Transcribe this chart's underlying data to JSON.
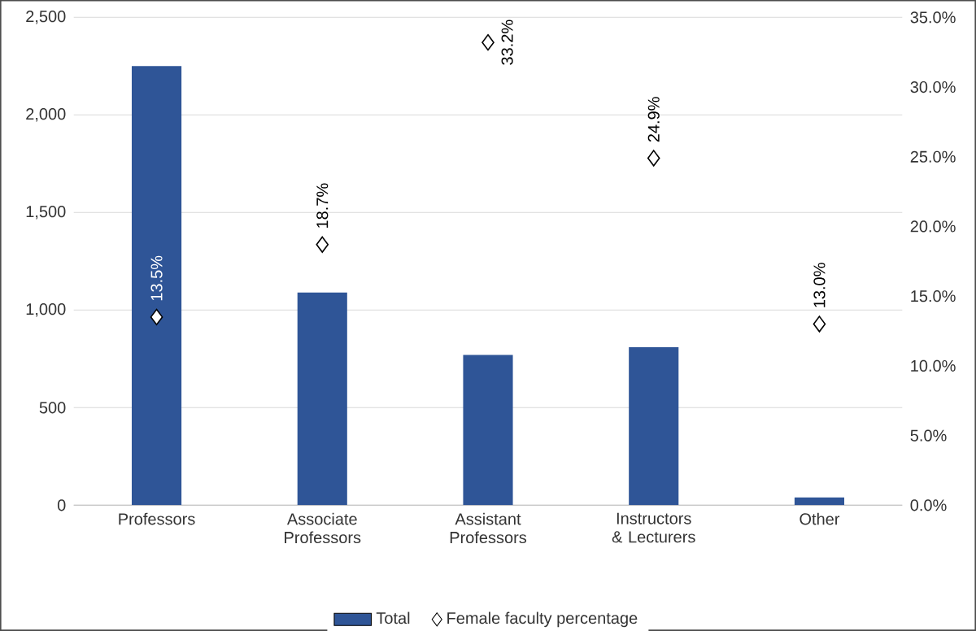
{
  "chart_data": {
    "type": "bar",
    "categories": [
      "Professors",
      "Associate Professors",
      "Assistant Professors",
      "Instructors & Lecturers",
      "Other"
    ],
    "series": [
      {
        "name": "Total",
        "color": "#2f5597",
        "values": [
          2250,
          1090,
          770,
          810,
          40
        ]
      },
      {
        "name": "Female faculty percentage",
        "type": "scatter",
        "axis": "y2",
        "color": "#000000",
        "marker": "diamond",
        "values": [
          13.5,
          18.7,
          33.2,
          24.9,
          13.0
        ],
        "value_labels": [
          "13.5%",
          "18.7%",
          "33.2%",
          "24.9%",
          "13.0%"
        ]
      }
    ],
    "ylim": [
      0,
      2500
    ],
    "yticks": [
      {
        "value": 0,
        "label": "0"
      },
      {
        "value": 500,
        "label": "500"
      },
      {
        "value": 1000,
        "label": "1,000"
      },
      {
        "value": 1500,
        "label": "1,500"
      },
      {
        "value": 2000,
        "label": "2,000"
      },
      {
        "value": 2500,
        "label": "2,500"
      }
    ],
    "y2lim": [
      0,
      35
    ],
    "y2ticks": [
      {
        "value": 0,
        "label": "0.0%"
      },
      {
        "value": 5,
        "label": "5.0%"
      },
      {
        "value": 10,
        "label": "10.0%"
      },
      {
        "value": 15,
        "label": "15.0%"
      },
      {
        "value": 20,
        "label": "20.0%"
      },
      {
        "value": 25,
        "label": "25.0%"
      },
      {
        "value": 30,
        "label": "30.0%"
      },
      {
        "value": 35,
        "label": "35.0%"
      }
    ],
    "grid": "y",
    "legend": "bottom"
  }
}
